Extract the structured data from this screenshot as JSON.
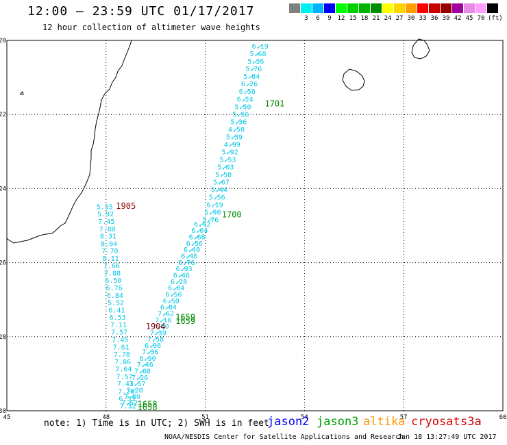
{
  "header": {
    "title": "12:00 – 23:59 UTC 01/17/2017",
    "subtitle": "12 hour collection of altimeter wave heights"
  },
  "legend": {
    "unit": "(ft)",
    "swatches": [
      {
        "color": "#808080",
        "label": ""
      },
      {
        "color": "#00f0f0",
        "label": "3"
      },
      {
        "color": "#00b4ff",
        "label": "6"
      },
      {
        "color": "#0000ff",
        "label": "9"
      },
      {
        "color": "#00ff00",
        "label": "12"
      },
      {
        "color": "#00d200",
        "label": "15"
      },
      {
        "color": "#00b400",
        "label": "18"
      },
      {
        "color": "#008c00",
        "label": "21"
      },
      {
        "color": "#ffff00",
        "label": "24"
      },
      {
        "color": "#ffd200",
        "label": "27"
      },
      {
        "color": "#ffa000",
        "label": "30"
      },
      {
        "color": "#ff0000",
        "label": "33"
      },
      {
        "color": "#c80000",
        "label": "36"
      },
      {
        "color": "#960000",
        "label": "39"
      },
      {
        "color": "#a000a0",
        "label": "42"
      },
      {
        "color": "#e68ce6",
        "label": "45"
      },
      {
        "color": "#ffa0ff",
        "label": "70"
      },
      {
        "color": "#000000",
        "label": ""
      }
    ]
  },
  "map": {
    "lon_range": [
      45,
      60
    ],
    "lat_range": [
      -30,
      -20
    ],
    "lon_ticks": [
      "45",
      "48",
      "51",
      "54",
      "57",
      "60"
    ],
    "lat_ticks": [
      "-20",
      "-22",
      "-24",
      "-26",
      "-28",
      "-30"
    ],
    "track_color": "#00c8e6",
    "time_color_green": "#008c00",
    "time_color_dark": "#8c0000",
    "track_a": [
      "6.19",
      "5.68",
      "5.36",
      "5.76",
      "5.84",
      "6.26",
      "6.56",
      "6.24",
      "5.50",
      "5.56",
      "5.36",
      "4.58",
      "5.39",
      "4.99",
      "5.92",
      "5.53",
      "5.03",
      "5.58",
      "5.67",
      "5.44",
      "5.56",
      "6.19",
      "5.90",
      "5.76"
    ],
    "track_b": [
      "6.42",
      "6.04",
      "6.68",
      "6.56",
      "6.40",
      "6.46",
      "6.76",
      "6.93",
      "6.46",
      "6.28",
      "6.84",
      "6.56",
      "6.50",
      "6.84",
      "7.62",
      "7.10",
      "7.60",
      "7.39",
      "7.58",
      "6.98",
      "7.36",
      "6.90",
      "7.46",
      "7.08",
      "7.26",
      "7.57",
      "7.20",
      "7.89",
      "7.52"
    ],
    "track_c": [
      "5.55",
      "5.92",
      "7.45",
      "7.80",
      "8.31",
      "8.04",
      "7.70",
      "8.11",
      "7.66",
      "7.88",
      "6.58",
      "6.76",
      "6.84",
      "5.52",
      "6.41",
      "6.53",
      "7.11",
      "7.57",
      "7.45",
      "7.61",
      "7.78",
      "7.86",
      "7.64",
      "7.57",
      "7.43",
      "7.26",
      "6.53",
      "7.32"
    ],
    "time_labels": [
      {
        "text": "1701",
        "lon": 52.8,
        "lat": -21.78,
        "tone": "green"
      },
      {
        "text": "1700",
        "lon": 51.5,
        "lat": -24.78,
        "tone": "green"
      },
      {
        "text": "1905",
        "lon": 48.3,
        "lat": -24.55,
        "tone": "dark"
      },
      {
        "text": "1659",
        "lon": 50.1,
        "lat": -27.55,
        "tone": "green"
      },
      {
        "text": "1659",
        "lon": 50.1,
        "lat": -27.65,
        "tone": "green"
      },
      {
        "text": "1904",
        "lon": 49.2,
        "lat": -27.8,
        "tone": "dark"
      },
      {
        "text": "1658",
        "lon": 48.95,
        "lat": -29.9,
        "tone": "green"
      },
      {
        "text": "1658",
        "lon": 48.95,
        "lat": -29.98,
        "tone": "green"
      }
    ]
  },
  "footer": {
    "note": "note: 1) Time is in UTC; 2) SWH is in feet",
    "sat_jason2": "jason2",
    "sat_jason3": "jason3",
    "sat_altika": "altika",
    "sat_cryosat": "cryosat",
    "sat_s3a": "s3a",
    "color_jason2": "#0000ff",
    "color_jason3": "#00a000",
    "color_altika": "#ff9600",
    "color_cryosat": "#dc0000",
    "color_s3a": "#c80000",
    "credit": "NOAA/NESDIS Center for Satellite Applications and Research",
    "stamp": "Jan 18 13:27:49 UTC 2017"
  }
}
